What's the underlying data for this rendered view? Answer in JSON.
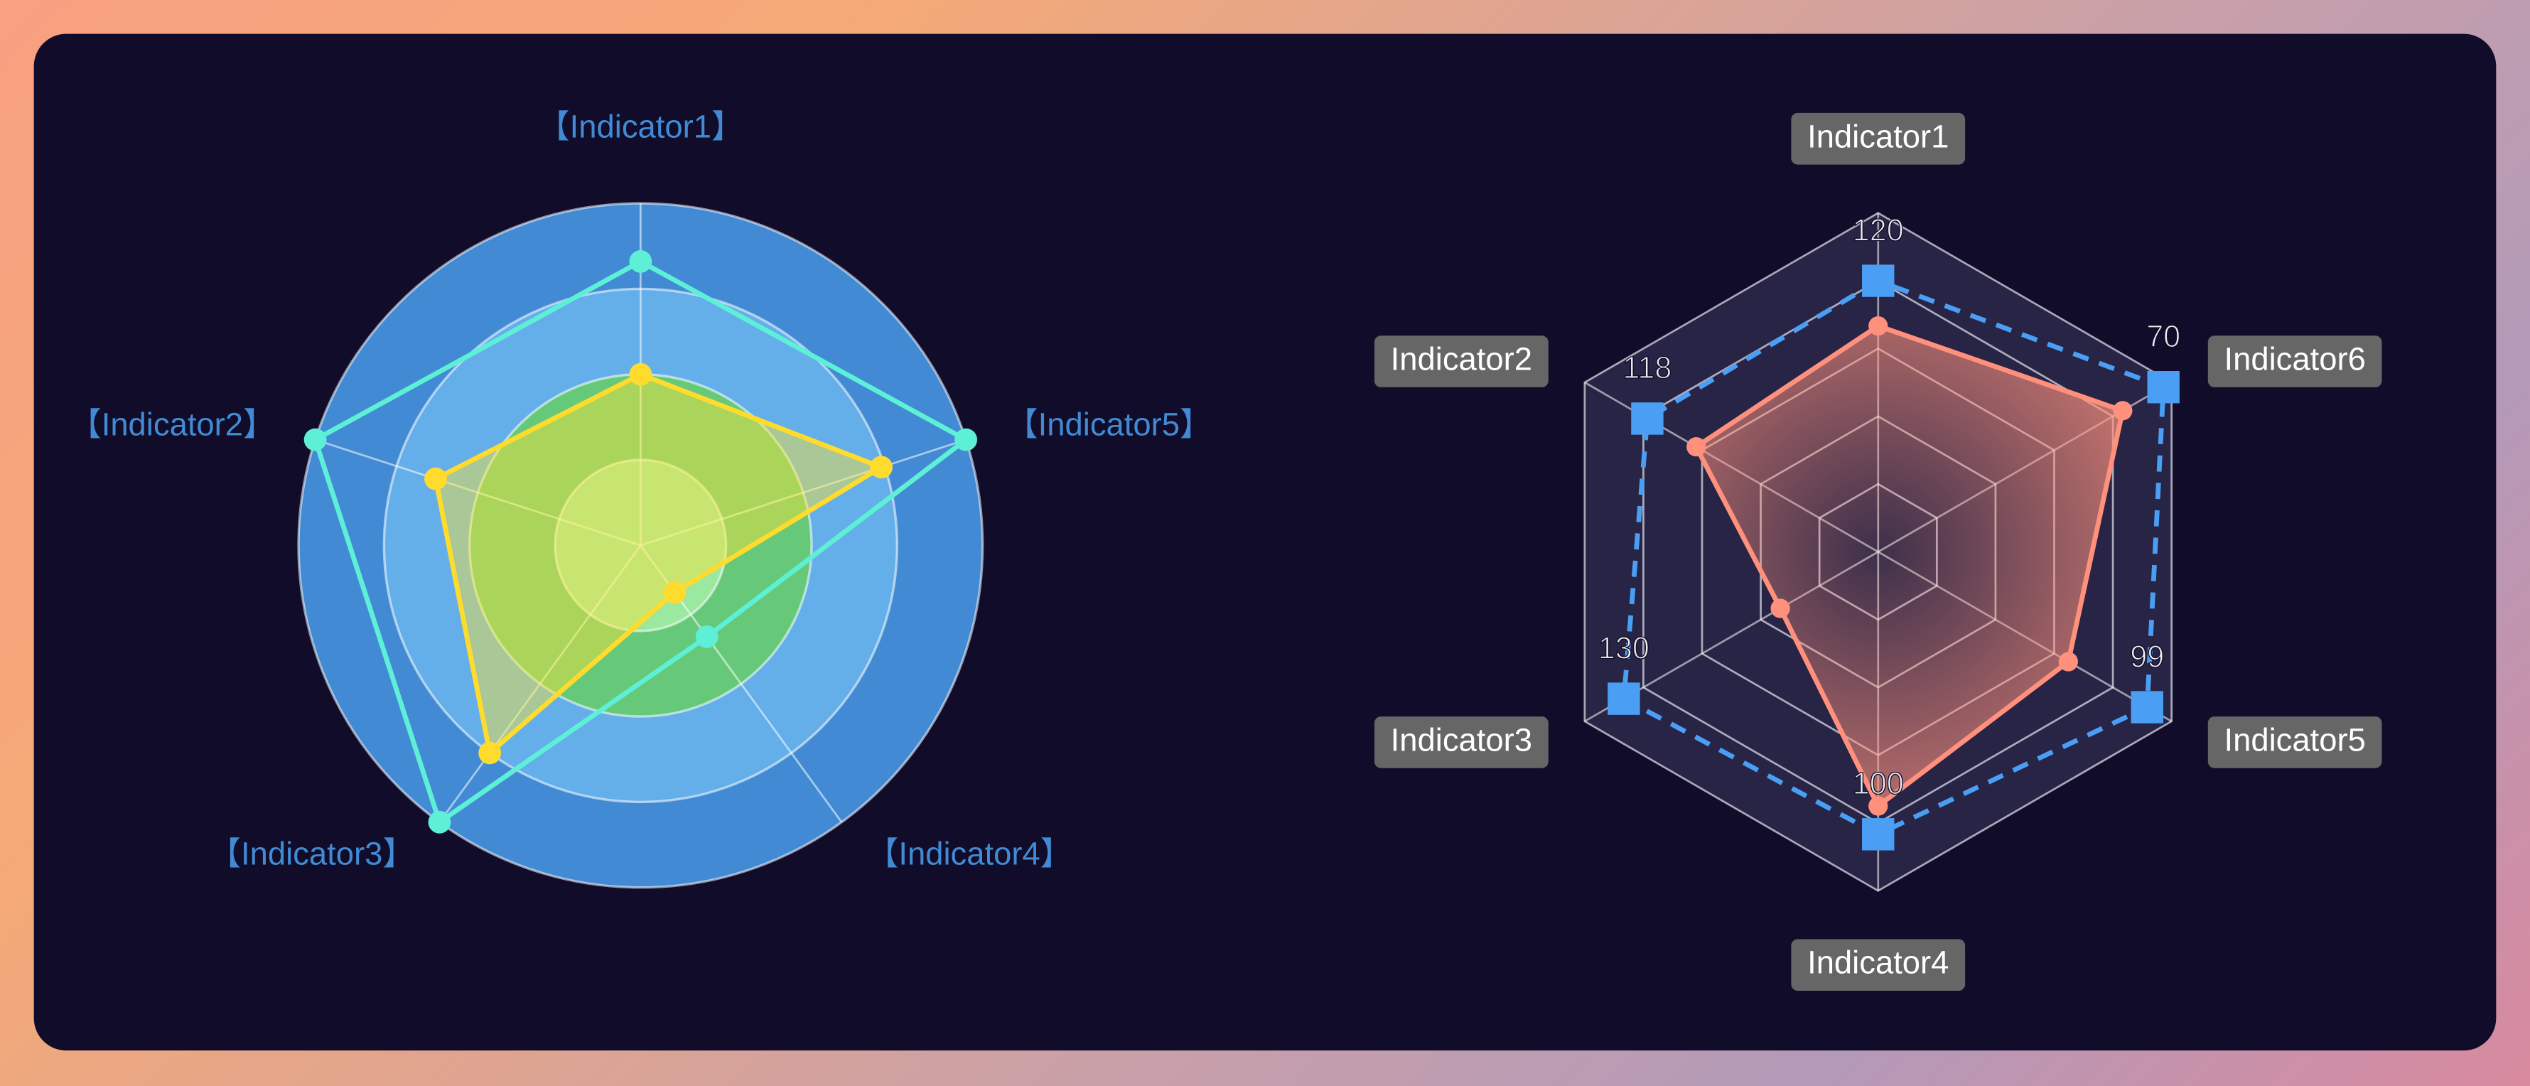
{
  "chart_data": [
    {
      "type": "radar",
      "shape": "circle",
      "indicators": [
        "【Indicator1】",
        "【Indicator2】",
        "【Indicator3】",
        "【Indicator4】",
        "【Indicator5】"
      ],
      "rlim": [
        0,
        100
      ],
      "ring_colors": [
        "#9be8a0",
        "#66c97a",
        "#64afe9",
        "#428bd4"
      ],
      "label_color": "#428bd4",
      "series": [
        {
          "color": "#5ef0d6",
          "values": [
            83,
            100,
            100,
            33,
            100
          ]
        },
        {
          "color": "#ffdb2e",
          "fill": "rgba(255,228,52,0.45)",
          "values": [
            50,
            63,
            75,
            17,
            74
          ]
        }
      ]
    },
    {
      "type": "radar",
      "shape": "polygon",
      "indicators": [
        "Indicator1",
        "Indicator2",
        "Indicator3",
        "Indicator4",
        "Indicator5",
        "Indicator6"
      ],
      "max": [
        150,
        150,
        150,
        120,
        108,
        72
      ],
      "split_number": 5,
      "area_color": "rgba(200,200,255,0.13)",
      "label_color": "#ffffff",
      "label_background": "#666666",
      "series": [
        {
          "color": "#ff917c",
          "gradient": [
            "rgba(255,145,124,0.1)",
            "rgba(255,145,124,0.85)"
          ],
          "values": [
            100,
            93,
            50,
            90,
            70,
            60
          ]
        },
        {
          "color": "#4a9ff5",
          "line": "dashed",
          "symbol": "rect",
          "show_labels": true,
          "values": [
            120,
            118,
            130,
            100,
            99,
            70
          ]
        }
      ]
    }
  ]
}
